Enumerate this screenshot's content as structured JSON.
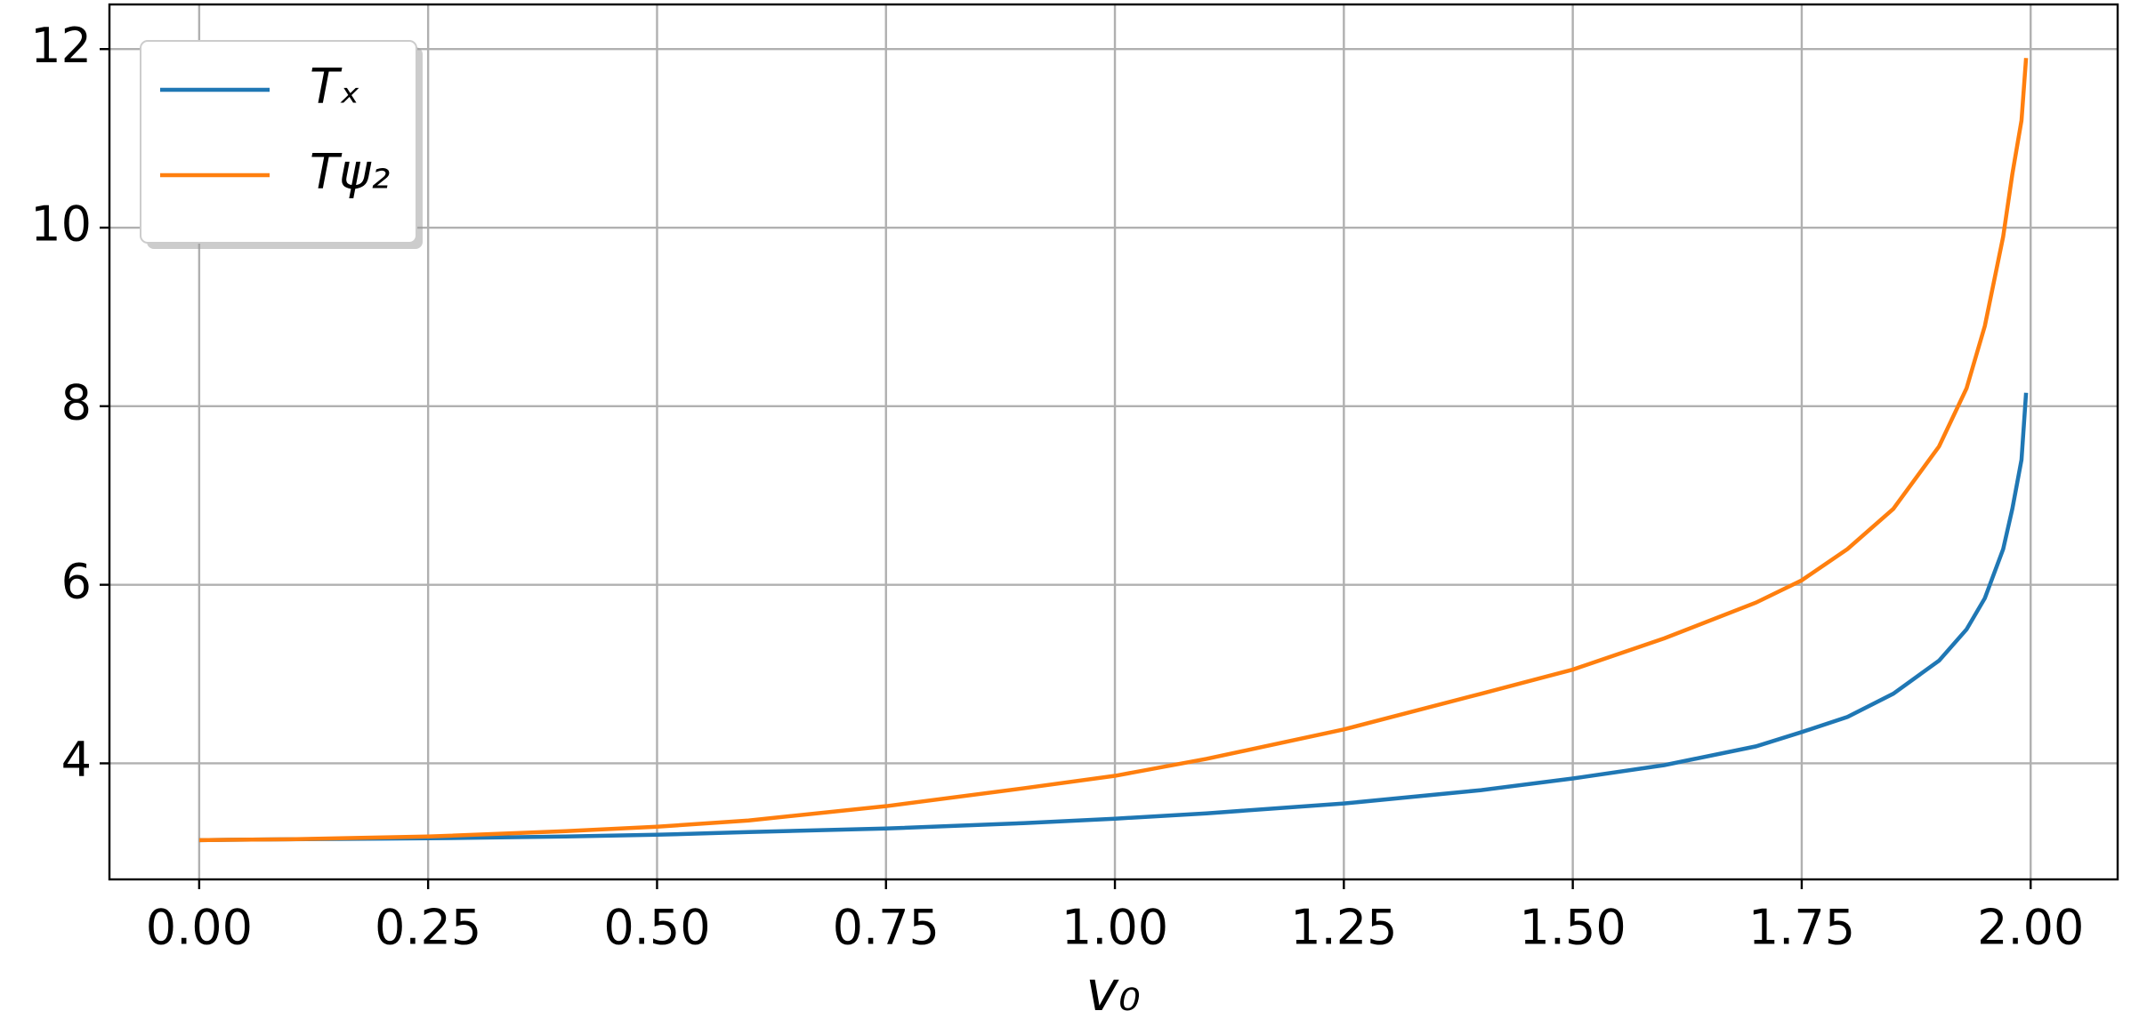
{
  "chart_data": {
    "type": "line",
    "x_label": "v₀",
    "x": [
      0,
      0.1,
      0.25,
      0.4,
      0.5,
      0.6,
      0.75,
      0.9,
      1.0,
      1.1,
      1.25,
      1.4,
      1.5,
      1.6,
      1.7,
      1.75,
      1.8,
      1.85,
      1.9,
      1.93,
      1.95,
      1.97,
      1.98,
      1.99,
      1.995
    ],
    "series": [
      {
        "name": "Tₓ",
        "color": "#1f77b4",
        "values": [
          3.14,
          3.15,
          3.16,
          3.18,
          3.2,
          3.23,
          3.27,
          3.33,
          3.38,
          3.44,
          3.55,
          3.7,
          3.83,
          3.98,
          4.19,
          4.35,
          4.52,
          4.78,
          5.15,
          5.5,
          5.85,
          6.4,
          6.85,
          7.4,
          8.15
        ]
      },
      {
        "name": "Tψ₂",
        "color": "#ff7f0e",
        "values": [
          3.14,
          3.15,
          3.18,
          3.24,
          3.29,
          3.36,
          3.52,
          3.72,
          3.86,
          4.05,
          4.38,
          4.78,
          5.05,
          5.4,
          5.8,
          6.05,
          6.4,
          6.85,
          7.55,
          8.2,
          8.9,
          9.9,
          10.6,
          11.2,
          11.9
        ]
      }
    ],
    "xlim": [
      -0.098,
      2.095
    ],
    "ylim": [
      2.7,
      12.5
    ],
    "xticks": [
      {
        "value": 0,
        "label": "0.00"
      },
      {
        "value": 0.25,
        "label": "0.25"
      },
      {
        "value": 0.5,
        "label": "0.50"
      },
      {
        "value": 0.75,
        "label": "0.75"
      },
      {
        "value": 1,
        "label": "1.00"
      },
      {
        "value": 1.25,
        "label": "1.25"
      },
      {
        "value": 1.5,
        "label": "1.50"
      },
      {
        "value": 1.75,
        "label": "1.75"
      },
      {
        "value": 2,
        "label": "2.00"
      }
    ],
    "yticks": [
      4,
      6,
      8,
      10,
      12
    ],
    "grid": true,
    "legend": "upper left"
  }
}
